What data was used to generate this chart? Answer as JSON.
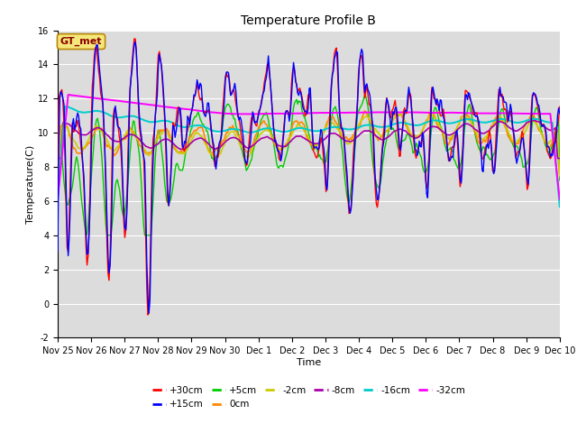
{
  "title": "Temperature Profile B",
  "xlabel": "Time",
  "ylabel": "Temperature(C)",
  "ylim": [
    -2,
    16
  ],
  "yticks": [
    -2,
    0,
    2,
    4,
    6,
    8,
    10,
    12,
    14,
    16
  ],
  "xtick_labels": [
    "Nov 25",
    "Nov 26",
    "Nov 27",
    "Nov 28",
    "Nov 29",
    "Nov 30",
    "Dec 1",
    "Dec 2",
    "Dec 3",
    "Dec 4",
    "Dec 5",
    "Dec 6",
    "Dec 7",
    "Dec 8",
    "Dec 9",
    "Dec 10"
  ],
  "legend_label": "GT_met",
  "series_colors": {
    "+30cm": "#ff0000",
    "+15cm": "#0000ff",
    "+5cm": "#00cc00",
    "0cm": "#ff8800",
    "-2cm": "#cccc00",
    "-8cm": "#aa00aa",
    "-16cm": "#00cccc",
    "-32cm": "#ff00ff"
  },
  "plot_bg": "#dcdcdc",
  "fig_bg": "#ffffff",
  "title_fontsize": 10,
  "tick_fontsize": 7,
  "axis_label_fontsize": 8,
  "legend_fontsize": 7.5,
  "gt_met_color": "#8b0000",
  "gt_met_bg": "#f5e87a",
  "gt_met_edge": "#b8860b"
}
